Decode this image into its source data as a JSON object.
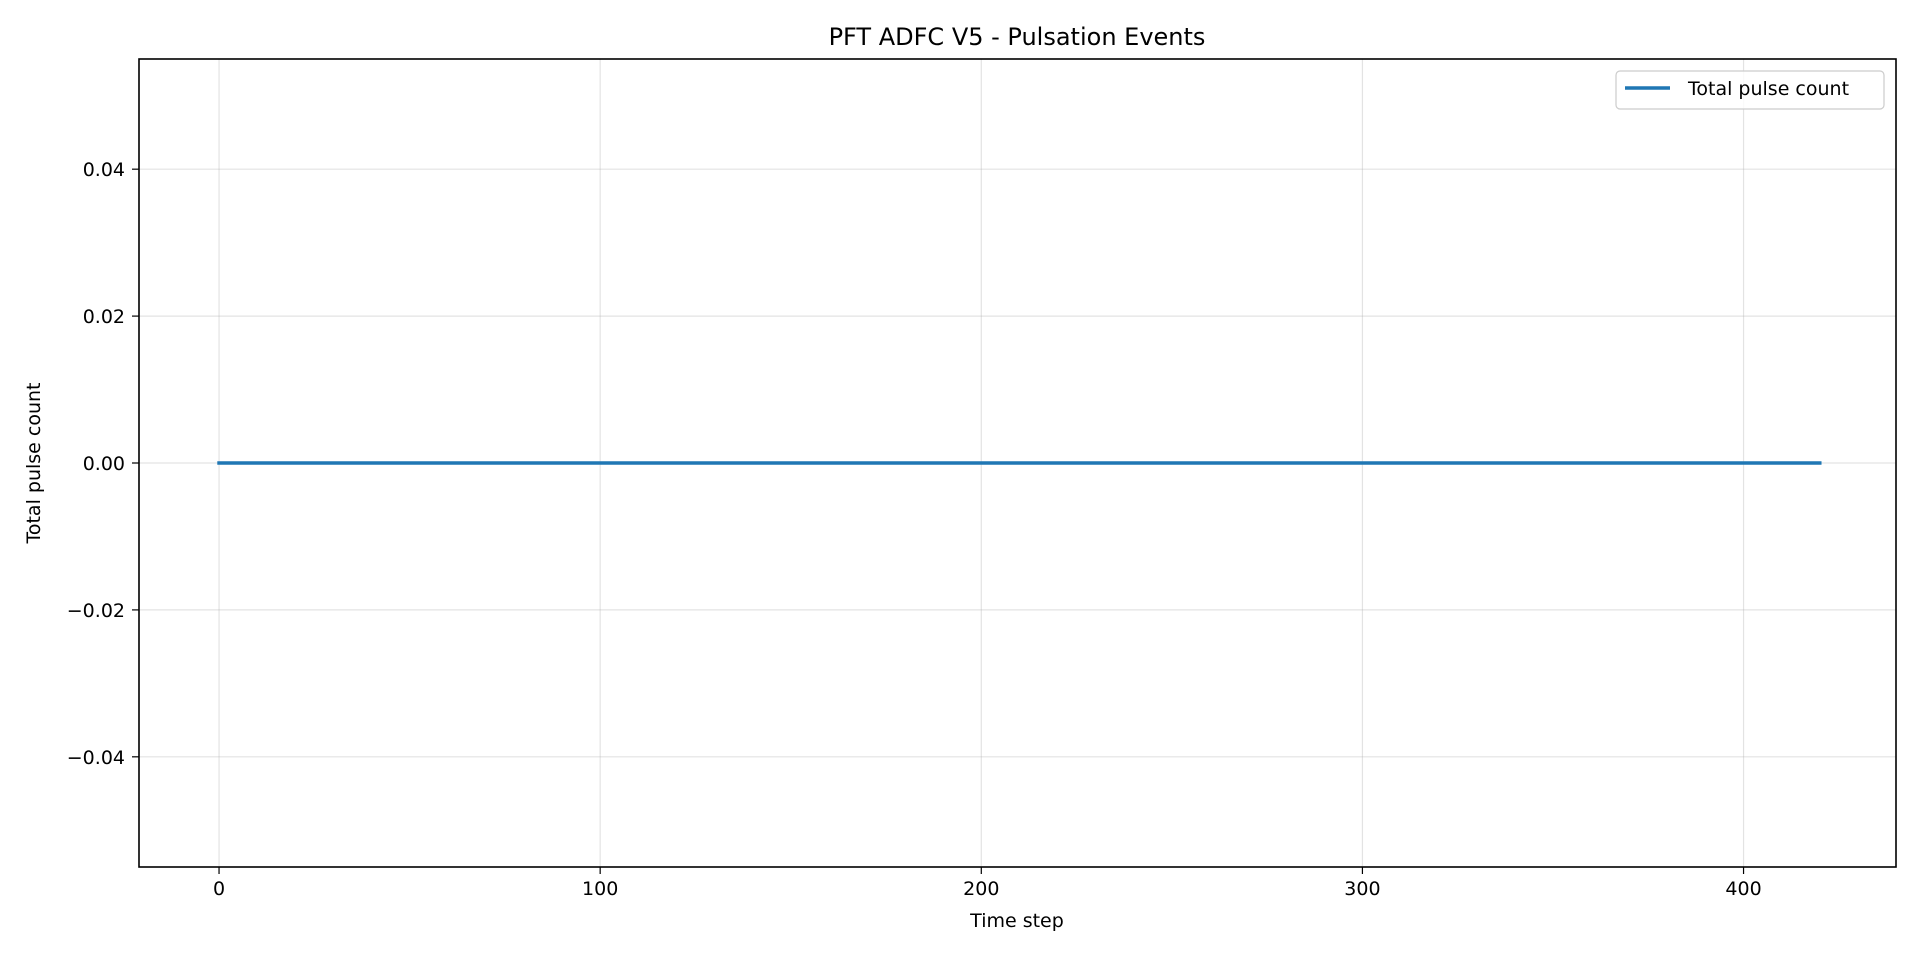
{
  "chart_data": {
    "type": "line",
    "title": "PFT ADFC V5 - Pulsation Events",
    "xlabel": "Time step",
    "ylabel": "Total pulse count",
    "xlim": [
      -21,
      440
    ],
    "ylim": [
      -0.055,
      0.055
    ],
    "xticks": [
      0,
      100,
      200,
      300,
      400
    ],
    "xtick_labels": [
      "0",
      "100",
      "200",
      "300",
      "400"
    ],
    "yticks": [
      -0.04,
      -0.02,
      0.0,
      0.02,
      0.04
    ],
    "ytick_labels": [
      "−0.04",
      "−0.02",
      "0.00",
      "0.02",
      "0.04"
    ],
    "grid": true,
    "legend_position": "top-right",
    "series": [
      {
        "name": "Total pulse count",
        "color": "#1f77b4",
        "x": [
          0,
          420
        ],
        "y": [
          0,
          0
        ]
      }
    ]
  }
}
